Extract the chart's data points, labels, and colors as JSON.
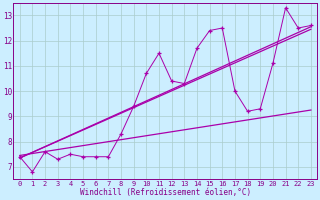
{
  "background_color": "#cceeff",
  "grid_color": "#aacccc",
  "line_color": "#aa00aa",
  "marker_color": "#aa00aa",
  "xlabel": "Windchill (Refroidissement éolien,°C)",
  "xlim": [
    -0.5,
    23.5
  ],
  "ylim": [
    6.5,
    13.5
  ],
  "yticks": [
    7,
    8,
    9,
    10,
    11,
    12,
    13
  ],
  "xticks": [
    0,
    1,
    2,
    3,
    4,
    5,
    6,
    7,
    8,
    9,
    10,
    11,
    12,
    13,
    14,
    15,
    16,
    17,
    18,
    19,
    20,
    21,
    22,
    23
  ],
  "series1_x": [
    0,
    1,
    2,
    3,
    4,
    5,
    6,
    7,
    8,
    9,
    10,
    11,
    12,
    13,
    14,
    15,
    16,
    17,
    18,
    19,
    20,
    21,
    22,
    23
  ],
  "series1_y": [
    7.4,
    6.8,
    7.6,
    7.3,
    7.5,
    7.4,
    7.4,
    7.4,
    8.3,
    9.4,
    10.7,
    11.5,
    10.4,
    10.3,
    11.7,
    12.4,
    12.5,
    10.0,
    9.2,
    9.3,
    11.1,
    13.3,
    12.5,
    12.6
  ],
  "series2_x": [
    0,
    23
  ],
  "series2_y": [
    7.35,
    12.55
  ],
  "series3_x": [
    0,
    23
  ],
  "series3_y": [
    7.35,
    12.45
  ],
  "series4_x": [
    0,
    23
  ],
  "series4_y": [
    7.45,
    9.25
  ],
  "tick_fontsize": 5,
  "xlabel_fontsize": 5.5,
  "tick_color": "#880088",
  "xlabel_color": "#880088",
  "spine_color": "#880088"
}
